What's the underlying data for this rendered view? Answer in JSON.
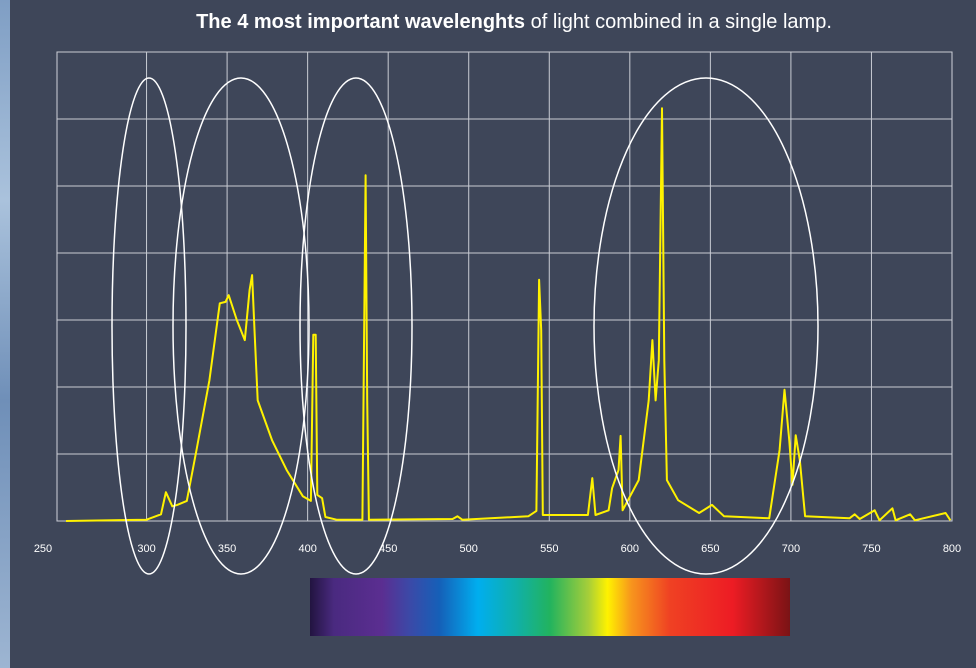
{
  "chart_data": {
    "type": "line",
    "title_bold": "The 4 most important wavelenghts",
    "title_rest": " of light combined in a single lamp.",
    "x": [
      250,
      300,
      309,
      312,
      316,
      319,
      325,
      331,
      339,
      345.5,
      349,
      351,
      356,
      361,
      364,
      365.5,
      367,
      369,
      378,
      387,
      397,
      402,
      403.5,
      405,
      406,
      409,
      411,
      418,
      434,
      436,
      437,
      438,
      490,
      493,
      496,
      537,
      542,
      543.7,
      545,
      546,
      574,
      576.7,
      578.7,
      586.8,
      589,
      593,
      594.3,
      595.5,
      605.5,
      611.7,
      614,
      616,
      618,
      620,
      621.4,
      623,
      630,
      643,
      651,
      658.5,
      686.5,
      693,
      696,
      699,
      701,
      703,
      705.5,
      708.8,
      736.4,
      739.6,
      742.7,
      752,
      755,
      763,
      765,
      774,
      777,
      796,
      799
    ],
    "values": [
      0,
      0.02,
      0.1,
      0.43,
      0.22,
      0.24,
      0.3,
      1.06,
      2.1,
      3.25,
      3.27,
      3.37,
      3.0,
      2.7,
      3.45,
      3.67,
      2.85,
      1.8,
      1.2,
      0.76,
      0.37,
      0.3,
      2.78,
      2.78,
      0.39,
      0.34,
      0.06,
      0.02,
      0.02,
      5.16,
      1.8,
      0.02,
      0.03,
      0.07,
      0.02,
      0.07,
      0.15,
      3.6,
      2.85,
      0.09,
      0.09,
      0.64,
      0.09,
      0.16,
      0.49,
      0.76,
      1.27,
      0.16,
      0.61,
      1.8,
      2.7,
      1.8,
      2.4,
      6.16,
      2.4,
      0.61,
      0.31,
      0.12,
      0.24,
      0.07,
      0.04,
      1.06,
      1.96,
      1.2,
      0.54,
      1.28,
      0.91,
      0.07,
      0.04,
      0.1,
      0.03,
      0.16,
      0.01,
      0.19,
      0.01,
      0.1,
      0.01,
      0.12,
      0.01
    ],
    "color": "#fff200",
    "xlim": [
      250,
      800
    ],
    "xticks": [
      250,
      300,
      350,
      400,
      450,
      500,
      550,
      600,
      650,
      700,
      750,
      800
    ],
    "ylim": [
      0,
      7
    ],
    "yticks": [
      0,
      1,
      2,
      3,
      4,
      5,
      6,
      7
    ],
    "grid": true
  }
}
